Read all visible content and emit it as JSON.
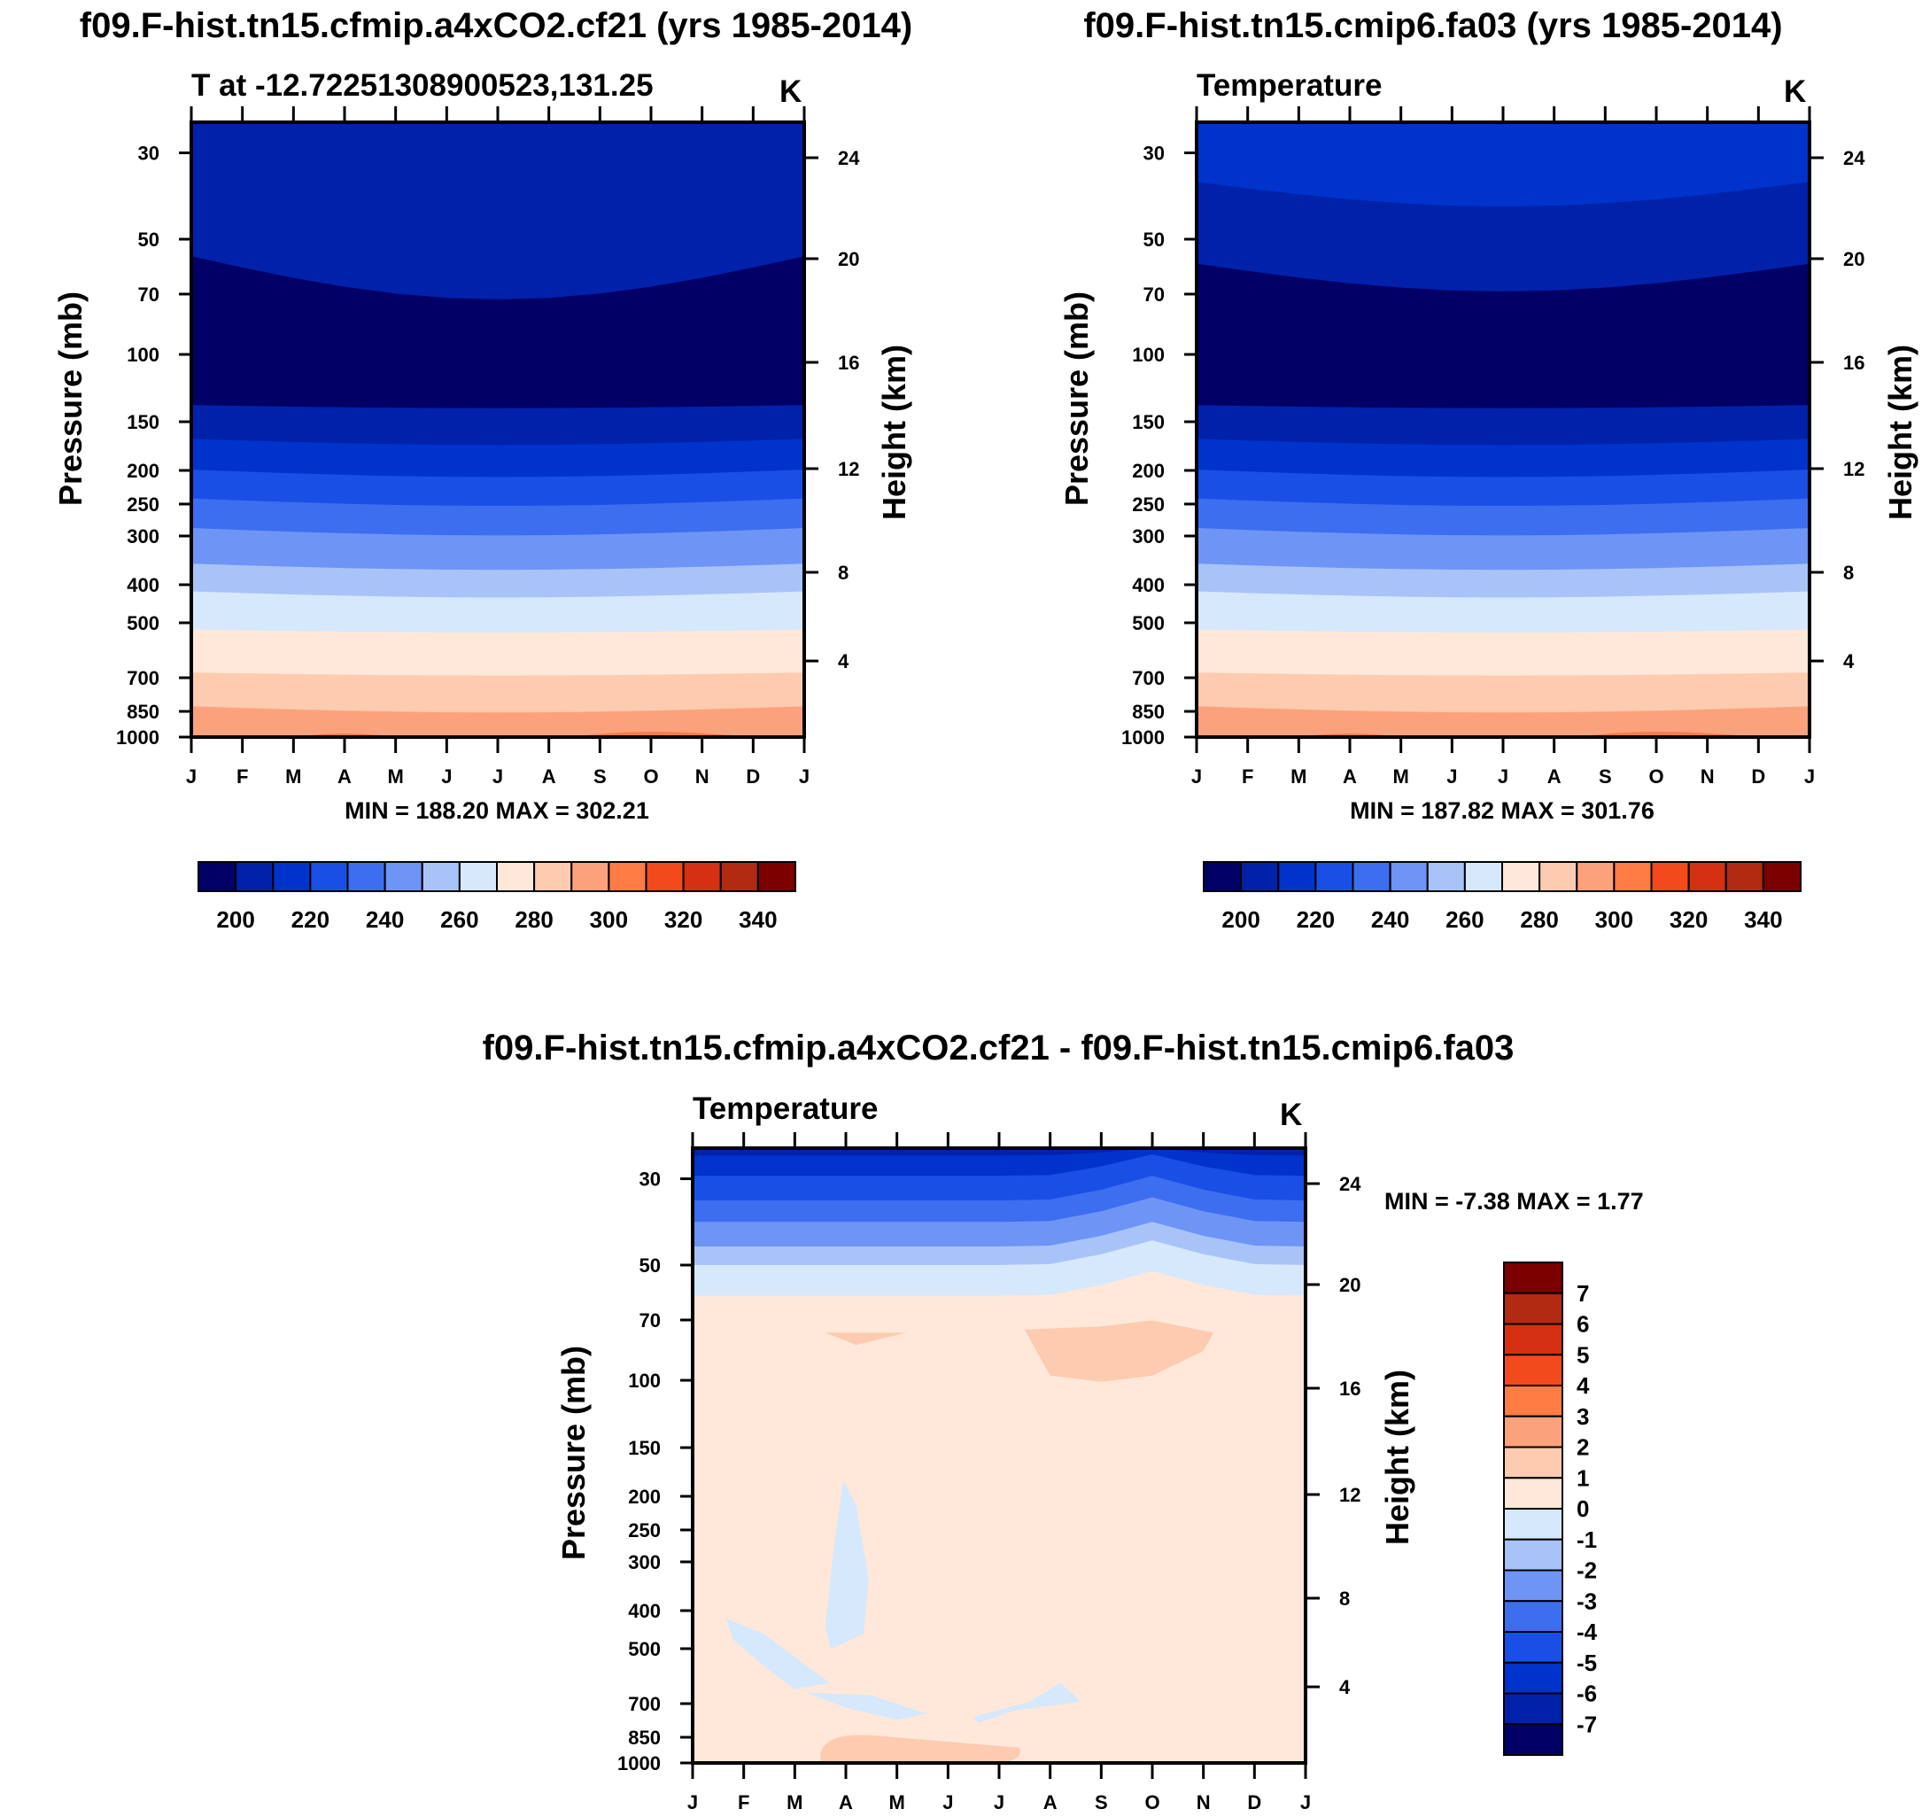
{
  "chart_data": [
    {
      "type": "heatmap",
      "title": "f09.F-hist.tn15.cfmip.a4xCO2.cf21 (yrs 1985-2014)",
      "subtitle_left": "T at -12.72251308900523,131.25",
      "units": "K",
      "ylabel": "Pressure (mb)",
      "ylabel_right": "Height (km)",
      "months": [
        "J",
        "F",
        "M",
        "A",
        "M",
        "J",
        "J",
        "A",
        "S",
        "O",
        "N",
        "D",
        "J"
      ],
      "pressure_ticks": [
        "30",
        "50",
        "70",
        "100",
        "150",
        "200",
        "250",
        "300",
        "400",
        "500",
        "700",
        "850",
        "1000"
      ],
      "height_ticks": [
        "24",
        "20",
        "16",
        "12",
        "8",
        "4"
      ],
      "stats": "MIN = 188.20 MAX = 302.21",
      "colorbar_ticks": [
        "200",
        "220",
        "240",
        "260",
        "280",
        "300",
        "320",
        "340"
      ],
      "contour_levels": [
        195,
        200,
        205,
        210,
        215,
        220,
        225,
        230,
        235,
        240,
        245,
        250,
        255,
        260,
        265,
        270,
        275,
        280,
        285,
        290,
        295,
        300,
        305
      ]
    },
    {
      "type": "heatmap",
      "title": "f09.F-hist.tn15.cmip6.fa03 (yrs 1985-2014)",
      "subtitle_left": "Temperature",
      "units": "K",
      "ylabel": "Pressure (mb)",
      "ylabel_right": "Height (km)",
      "months": [
        "J",
        "F",
        "M",
        "A",
        "M",
        "J",
        "J",
        "A",
        "S",
        "O",
        "N",
        "D",
        "J"
      ],
      "pressure_ticks": [
        "30",
        "50",
        "70",
        "100",
        "150",
        "200",
        "250",
        "300",
        "400",
        "500",
        "700",
        "850",
        "1000"
      ],
      "height_ticks": [
        "24",
        "20",
        "16",
        "12",
        "8",
        "4"
      ],
      "stats": "MIN = 187.82 MAX = 301.76",
      "colorbar_ticks": [
        "200",
        "220",
        "240",
        "260",
        "280",
        "300",
        "320",
        "340"
      ]
    },
    {
      "type": "heatmap",
      "title": "f09.F-hist.tn15.cfmip.a4xCO2.cf21 - f09.F-hist.tn15.cmip6.fa03",
      "subtitle_left": "Temperature",
      "units": "K",
      "ylabel": "Pressure (mb)",
      "ylabel_right": "Height (km)",
      "months": [
        "J",
        "F",
        "M",
        "A",
        "M",
        "J",
        "J",
        "A",
        "S",
        "O",
        "N",
        "D",
        "J"
      ],
      "pressure_ticks": [
        "30",
        "50",
        "70",
        "100",
        "150",
        "200",
        "250",
        "300",
        "400",
        "500",
        "700",
        "850",
        "1000"
      ],
      "height_ticks": [
        "24",
        "20",
        "16",
        "12",
        "8",
        "4"
      ],
      "stats": "MIN =  -7.38 MAX =   1.77",
      "colorbar_ticks": [
        "7",
        "6",
        "5",
        "4",
        "3",
        "2",
        "1",
        "0",
        "-1",
        "-2",
        "-3",
        "-4",
        "-5",
        "-6",
        "-7"
      ]
    }
  ],
  "colors": {
    "temp_scale": [
      "#000066",
      "#0022aa",
      "#0033cc",
      "#1a4fe6",
      "#3d6ef0",
      "#6e95f5",
      "#a8c3f8",
      "#d6e8fb",
      "#ffe8d9",
      "#fccbb0",
      "#fba27c",
      "#ff7c45",
      "#f24a1c",
      "#d43011",
      "#b22a12",
      "#7d0000"
    ],
    "diff_scale": [
      "#7d0000",
      "#b22a12",
      "#d43011",
      "#f24a1c",
      "#ff7c45",
      "#fba27c",
      "#fccbb0",
      "#ffe8d9",
      "#d6e8fb",
      "#a8c3f8",
      "#6e95f5",
      "#3d6ef0",
      "#1a4fe6",
      "#0033cc",
      "#0022aa",
      "#000066"
    ]
  }
}
